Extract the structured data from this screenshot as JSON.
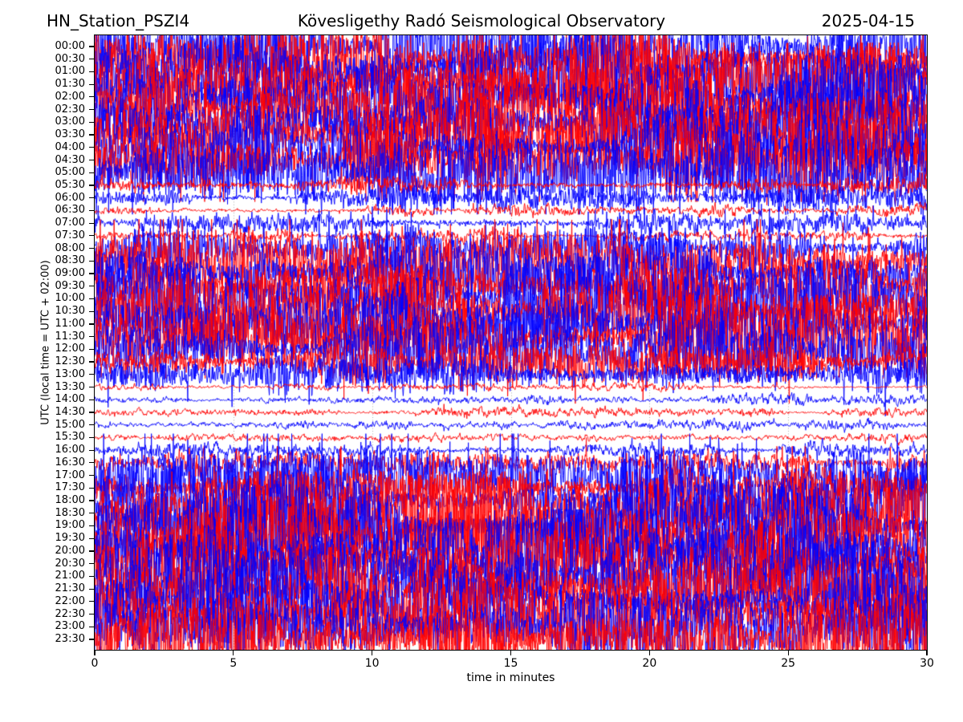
{
  "header": {
    "station": "HN_Station_PSZI4",
    "observatory": "Kövesligethy Radó Seismological Observatory",
    "date": "2025-04-15"
  },
  "chart_data": {
    "type": "line",
    "variant": "helicorder_dayplot",
    "title": "HN_Station_PSZI4 — Kövesligethy Radó Seismological Observatory — 2025-04-15",
    "xlabel": "time in minutes",
    "ylabel": "UTC (local time = UTC + 02:00)",
    "xlim": [
      0,
      30
    ],
    "xticks": [
      0,
      5,
      10,
      15,
      20,
      25,
      30
    ],
    "minutes_per_row": 30,
    "grid": {
      "vertical_dotted": true,
      "color": "#999999"
    },
    "trace_colors": {
      "hour_rows": "#0000ff",
      "half_hour_rows": "#ff0000"
    },
    "rows": [
      {
        "time": "00:00",
        "color": "#0000ff",
        "amplitude": 1.0
      },
      {
        "time": "00:30",
        "color": "#ff0000",
        "amplitude": 1.0
      },
      {
        "time": "01:00",
        "color": "#0000ff",
        "amplitude": 1.0
      },
      {
        "time": "01:30",
        "color": "#ff0000",
        "amplitude": 1.0
      },
      {
        "time": "02:00",
        "color": "#0000ff",
        "amplitude": 1.0
      },
      {
        "time": "02:30",
        "color": "#ff0000",
        "amplitude": 1.0
      },
      {
        "time": "03:00",
        "color": "#0000ff",
        "amplitude": 1.0
      },
      {
        "time": "03:30",
        "color": "#ff0000",
        "amplitude": 1.0
      },
      {
        "time": "04:00",
        "color": "#0000ff",
        "amplitude": 1.0
      },
      {
        "time": "04:30",
        "color": "#ff0000",
        "amplitude": 0.95
      },
      {
        "time": "05:00",
        "color": "#0000ff",
        "amplitude": 0.9
      },
      {
        "time": "05:30",
        "color": "#ff0000",
        "amplitude": 0.3
      },
      {
        "time": "06:00",
        "color": "#0000ff",
        "amplitude": 0.35
      },
      {
        "time": "06:30",
        "color": "#ff0000",
        "amplitude": 0.18
      },
      {
        "time": "07:00",
        "color": "#0000ff",
        "amplitude": 0.35
      },
      {
        "time": "07:30",
        "color": "#ff0000",
        "amplitude": 0.2
      },
      {
        "time": "08:00",
        "color": "#0000ff",
        "amplitude": 0.55
      },
      {
        "time": "08:30",
        "color": "#ff0000",
        "amplitude": 0.9
      },
      {
        "time": "09:00",
        "color": "#0000ff",
        "amplitude": 1.0
      },
      {
        "time": "09:30",
        "color": "#ff0000",
        "amplitude": 0.7
      },
      {
        "time": "10:00",
        "color": "#0000ff",
        "amplitude": 1.0
      },
      {
        "time": "10:30",
        "color": "#ff0000",
        "amplitude": 1.0
      },
      {
        "time": "11:00",
        "color": "#0000ff",
        "amplitude": 1.0
      },
      {
        "time": "11:30",
        "color": "#ff0000",
        "amplitude": 1.0
      },
      {
        "time": "12:00",
        "color": "#0000ff",
        "amplitude": 0.9
      },
      {
        "time": "12:30",
        "color": "#ff0000",
        "amplitude": 0.5
      },
      {
        "time": "13:00",
        "color": "#0000ff",
        "amplitude": 0.55
      },
      {
        "time": "13:30",
        "color": "#ff0000",
        "amplitude": 0.12
      },
      {
        "time": "14:00",
        "color": "#0000ff",
        "amplitude": 0.15
      },
      {
        "time": "14:30",
        "color": "#ff0000",
        "amplitude": 0.15
      },
      {
        "time": "15:00",
        "color": "#0000ff",
        "amplitude": 0.15
      },
      {
        "time": "15:30",
        "color": "#ff0000",
        "amplitude": 0.12
      },
      {
        "time": "16:00",
        "color": "#0000ff",
        "amplitude": 0.25
      },
      {
        "time": "16:30",
        "color": "#ff0000",
        "amplitude": 0.35
      },
      {
        "time": "17:00",
        "color": "#0000ff",
        "amplitude": 0.8
      },
      {
        "time": "17:30",
        "color": "#ff0000",
        "amplitude": 0.6
      },
      {
        "time": "18:00",
        "color": "#0000ff",
        "amplitude": 0.9
      },
      {
        "time": "18:30",
        "color": "#ff0000",
        "amplitude": 1.0
      },
      {
        "time": "19:00",
        "color": "#0000ff",
        "amplitude": 1.0
      },
      {
        "time": "19:30",
        "color": "#ff0000",
        "amplitude": 0.9
      },
      {
        "time": "20:00",
        "color": "#0000ff",
        "amplitude": 1.0
      },
      {
        "time": "20:30",
        "color": "#ff0000",
        "amplitude": 1.0
      },
      {
        "time": "21:00",
        "color": "#0000ff",
        "amplitude": 1.0
      },
      {
        "time": "21:30",
        "color": "#ff0000",
        "amplitude": 1.0
      },
      {
        "time": "22:00",
        "color": "#0000ff",
        "amplitude": 1.0
      },
      {
        "time": "22:30",
        "color": "#ff0000",
        "amplitude": 1.0
      },
      {
        "time": "23:00",
        "color": "#0000ff",
        "amplitude": 1.0
      },
      {
        "time": "23:30",
        "color": "#ff0000",
        "amplitude": 0.95
      }
    ]
  }
}
